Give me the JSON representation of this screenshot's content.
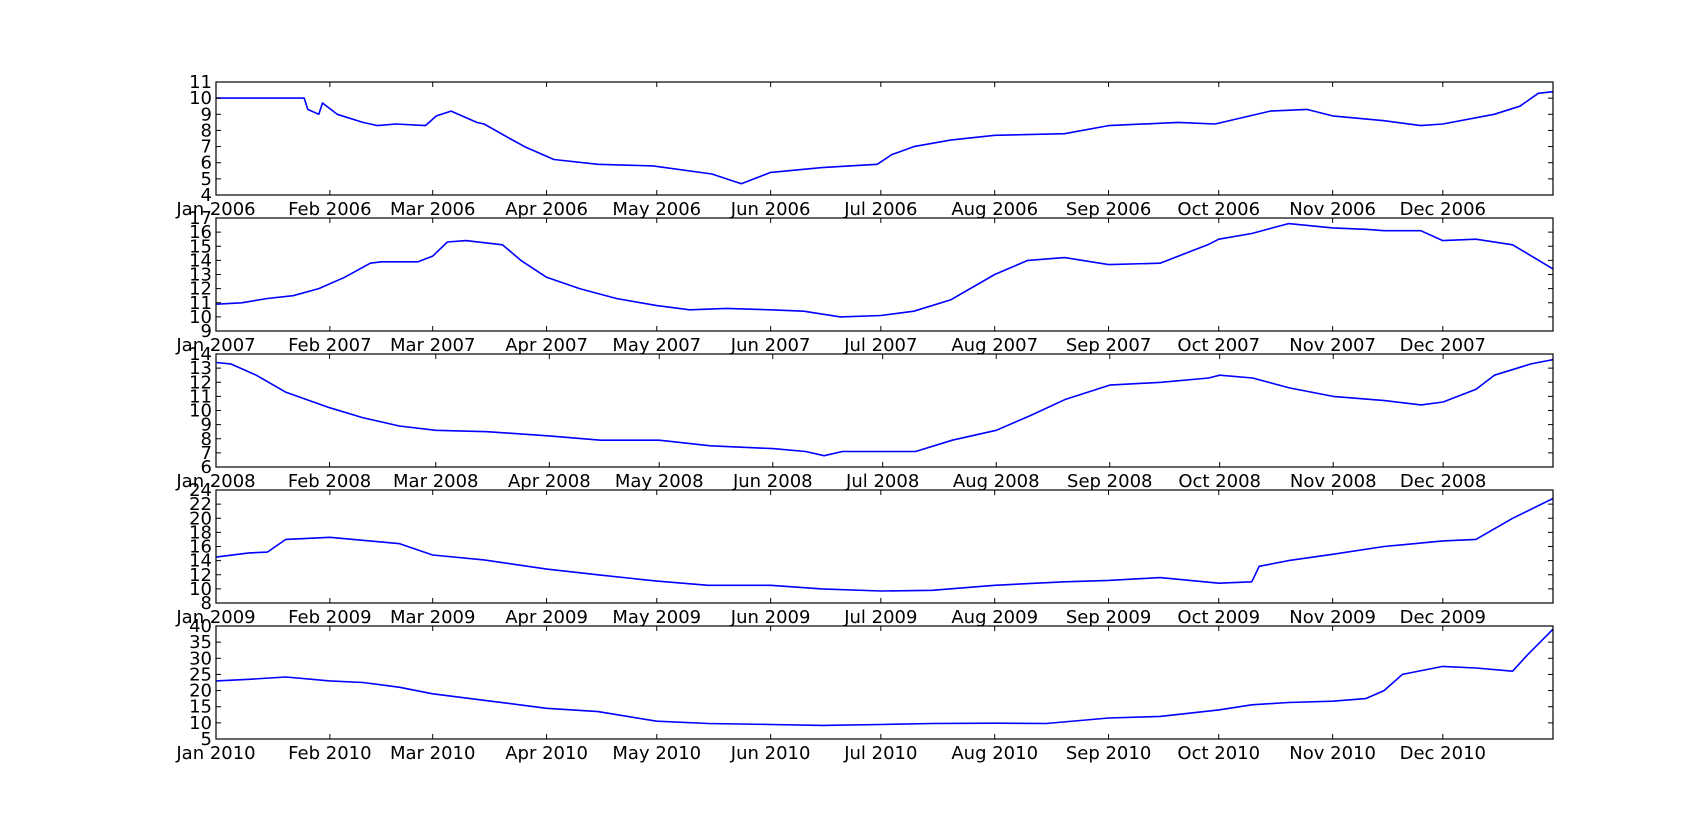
{
  "colors": {
    "line": "#0000ff",
    "frame": "#000000",
    "background": "#ffffff"
  },
  "chart_data": [
    {
      "type": "line",
      "year": "2006",
      "x_range": [
        "2006-01-01",
        "2006-12-31"
      ],
      "x_tick_labels": [
        "Jan 2006",
        "Feb 2006",
        "Mar 2006",
        "Apr 2006",
        "May 2006",
        "Jun 2006",
        "Jul 2006",
        "Aug 2006",
        "Sep 2006",
        "Oct 2006",
        "Nov 2006",
        "Dec 2006"
      ],
      "y_tick_labels": [
        "4",
        "5",
        "6",
        "7",
        "8",
        "9",
        "10",
        "11"
      ],
      "ylim": [
        4,
        11
      ],
      "grid": false,
      "series": [
        {
          "x": [
            "2006-01-01",
            "2006-01-25",
            "2006-01-26",
            "2006-01-29",
            "2006-01-30",
            "2006-02-03",
            "2006-02-10",
            "2006-02-14",
            "2006-02-19",
            "2006-02-27",
            "2006-03-02",
            "2006-03-06",
            "2006-03-13",
            "2006-03-15",
            "2006-03-22",
            "2006-03-26",
            "2006-04-03",
            "2006-04-15",
            "2006-04-30",
            "2006-05-16",
            "2006-05-24",
            "2006-06-01",
            "2006-06-15",
            "2006-06-30",
            "2006-07-04",
            "2006-07-10",
            "2006-07-20",
            "2006-08-01",
            "2006-08-20",
            "2006-09-01",
            "2006-09-20",
            "2006-09-30",
            "2006-10-15",
            "2006-10-25",
            "2006-11-01",
            "2006-11-15",
            "2006-11-25",
            "2006-12-01",
            "2006-12-15",
            "2006-12-22",
            "2006-12-27",
            "2006-12-31"
          ],
          "y": [
            10,
            10,
            9.3,
            9.0,
            9.7,
            9.0,
            8.5,
            8.3,
            8.4,
            8.3,
            8.9,
            9.2,
            8.5,
            8.4,
            7.5,
            7.0,
            6.2,
            5.9,
            5.8,
            5.3,
            4.7,
            5.4,
            5.7,
            5.9,
            6.5,
            7.0,
            7.4,
            7.7,
            7.8,
            8.3,
            8.5,
            8.4,
            9.2,
            9.3,
            8.9,
            8.6,
            8.3,
            8.4,
            9.0,
            9.5,
            10.3,
            10.4
          ]
        }
      ]
    },
    {
      "type": "line",
      "year": "2007",
      "x_range": [
        "2007-01-01",
        "2007-12-31"
      ],
      "x_tick_labels": [
        "Jan 2007",
        "Feb 2007",
        "Mar 2007",
        "Apr 2007",
        "May 2007",
        "Jun 2007",
        "Jul 2007",
        "Aug 2007",
        "Sep 2007",
        "Oct 2007",
        "Nov 2007",
        "Dec 2007"
      ],
      "y_tick_labels": [
        "9",
        "10",
        "11",
        "12",
        "13",
        "14",
        "15",
        "16",
        "17"
      ],
      "ylim": [
        9,
        17
      ],
      "grid": false,
      "series": [
        {
          "x": [
            "2007-01-01",
            "2007-01-08",
            "2007-01-15",
            "2007-01-22",
            "2007-01-29",
            "2007-02-05",
            "2007-02-12",
            "2007-02-15",
            "2007-02-25",
            "2007-03-01",
            "2007-03-05",
            "2007-03-10",
            "2007-03-20",
            "2007-03-25",
            "2007-04-01",
            "2007-04-10",
            "2007-04-20",
            "2007-05-01",
            "2007-05-10",
            "2007-05-20",
            "2007-06-01",
            "2007-06-10",
            "2007-06-20",
            "2007-07-01",
            "2007-07-10",
            "2007-07-20",
            "2007-08-01",
            "2007-08-10",
            "2007-08-20",
            "2007-09-01",
            "2007-09-15",
            "2007-09-28",
            "2007-10-01",
            "2007-10-10",
            "2007-10-20",
            "2007-11-01",
            "2007-11-10",
            "2007-11-15",
            "2007-11-25",
            "2007-12-01",
            "2007-12-10",
            "2007-12-20",
            "2007-12-31"
          ],
          "y": [
            10.9,
            11.0,
            11.3,
            11.5,
            12.0,
            12.8,
            13.8,
            13.9,
            13.9,
            14.3,
            15.3,
            15.4,
            15.1,
            14.0,
            12.8,
            12.0,
            11.3,
            10.8,
            10.5,
            10.6,
            10.5,
            10.4,
            10.0,
            10.1,
            10.4,
            11.2,
            13.0,
            14.0,
            14.2,
            13.7,
            13.8,
            15.1,
            15.5,
            15.9,
            16.6,
            16.3,
            16.2,
            16.1,
            16.1,
            15.4,
            15.5,
            15.1,
            13.4
          ]
        }
      ]
    },
    {
      "type": "line",
      "year": "2008",
      "x_range": [
        "2008-01-01",
        "2008-12-31"
      ],
      "x_tick_labels": [
        "Jan 2008",
        "Feb 2008",
        "Mar 2008",
        "Apr 2008",
        "May 2008",
        "Jun 2008",
        "Jul 2008",
        "Aug 2008",
        "Sep 2008",
        "Oct 2008",
        "Nov 2008",
        "Dec 2008"
      ],
      "y_tick_labels": [
        "6",
        "7",
        "8",
        "9",
        "10",
        "11",
        "12",
        "13",
        "14"
      ],
      "ylim": [
        6,
        14
      ],
      "grid": false,
      "series": [
        {
          "x": [
            "2008-01-01",
            "2008-01-05",
            "2008-01-12",
            "2008-01-20",
            "2008-02-01",
            "2008-02-10",
            "2008-02-20",
            "2008-03-01",
            "2008-03-15",
            "2008-04-01",
            "2008-04-15",
            "2008-05-01",
            "2008-05-15",
            "2008-06-01",
            "2008-06-10",
            "2008-06-15",
            "2008-06-20",
            "2008-07-01",
            "2008-07-10",
            "2008-07-20",
            "2008-08-01",
            "2008-08-10",
            "2008-08-20",
            "2008-09-01",
            "2008-09-15",
            "2008-09-28",
            "2008-10-01",
            "2008-10-10",
            "2008-10-20",
            "2008-11-01",
            "2008-11-15",
            "2008-11-25",
            "2008-12-01",
            "2008-12-10",
            "2008-12-15",
            "2008-12-25",
            "2008-12-31"
          ],
          "y": [
            13.4,
            13.3,
            12.5,
            11.3,
            10.2,
            9.5,
            8.9,
            8.6,
            8.5,
            8.2,
            7.9,
            7.9,
            7.5,
            7.3,
            7.1,
            6.8,
            7.1,
            7.1,
            7.1,
            7.9,
            8.6,
            9.6,
            10.8,
            11.8,
            12.0,
            12.3,
            12.5,
            12.3,
            11.6,
            11.0,
            10.7,
            10.4,
            10.6,
            11.5,
            12.5,
            13.3,
            13.6
          ]
        }
      ]
    },
    {
      "type": "line",
      "year": "2009",
      "x_range": [
        "2009-01-01",
        "2009-12-31"
      ],
      "x_tick_labels": [
        "Jan 2009",
        "Feb 2009",
        "Mar 2009",
        "Apr 2009",
        "May 2009",
        "Jun 2009",
        "Jul 2009",
        "Aug 2009",
        "Sep 2009",
        "Oct 2009",
        "Nov 2009",
        "Dec 2009"
      ],
      "y_tick_labels": [
        "8",
        "10",
        "12",
        "14",
        "16",
        "18",
        "20",
        "22",
        "24"
      ],
      "ylim": [
        8,
        24
      ],
      "grid": false,
      "series": [
        {
          "x": [
            "2009-01-01",
            "2009-01-10",
            "2009-01-15",
            "2009-01-20",
            "2009-02-01",
            "2009-02-20",
            "2009-03-01",
            "2009-03-15",
            "2009-04-01",
            "2009-04-15",
            "2009-05-01",
            "2009-05-15",
            "2009-06-01",
            "2009-06-15",
            "2009-07-01",
            "2009-07-15",
            "2009-08-01",
            "2009-08-20",
            "2009-09-01",
            "2009-09-15",
            "2009-10-01",
            "2009-10-10",
            "2009-10-12",
            "2009-10-20",
            "2009-11-01",
            "2009-11-15",
            "2009-12-01",
            "2009-12-10",
            "2009-12-20",
            "2009-12-31"
          ],
          "y": [
            14.5,
            15.1,
            15.2,
            17.0,
            17.3,
            16.4,
            14.8,
            14.1,
            12.8,
            12.0,
            11.1,
            10.5,
            10.5,
            10.0,
            9.7,
            9.8,
            10.5,
            11.0,
            11.2,
            11.6,
            10.8,
            11.0,
            13.2,
            14.0,
            14.9,
            16.0,
            16.8,
            17.0,
            20.0,
            22.8
          ]
        }
      ]
    },
    {
      "type": "line",
      "year": "2010",
      "x_range": [
        "2010-01-01",
        "2010-12-31"
      ],
      "x_tick_labels": [
        "Jan 2010",
        "Feb 2010",
        "Mar 2010",
        "Apr 2010",
        "May 2010",
        "Jun 2010",
        "Jul 2010",
        "Aug 2010",
        "Sep 2010",
        "Oct 2010",
        "Nov 2010",
        "Dec 2010"
      ],
      "y_tick_labels": [
        "5",
        "10",
        "15",
        "20",
        "25",
        "30",
        "35",
        "40"
      ],
      "ylim": [
        5,
        40
      ],
      "grid": false,
      "series": [
        {
          "x": [
            "2010-01-01",
            "2010-01-10",
            "2010-01-20",
            "2010-02-01",
            "2010-02-10",
            "2010-02-20",
            "2010-03-01",
            "2010-03-15",
            "2010-04-01",
            "2010-04-15",
            "2010-05-01",
            "2010-05-15",
            "2010-06-01",
            "2010-06-15",
            "2010-07-01",
            "2010-07-15",
            "2010-08-01",
            "2010-08-15",
            "2010-09-01",
            "2010-09-15",
            "2010-10-01",
            "2010-10-10",
            "2010-10-20",
            "2010-11-01",
            "2010-11-10",
            "2010-11-15",
            "2010-11-20",
            "2010-12-01",
            "2010-12-10",
            "2010-12-20",
            "2010-12-24",
            "2010-12-31"
          ],
          "y": [
            23,
            23.5,
            24.2,
            23.0,
            22.5,
            21.0,
            19.0,
            17.0,
            14.5,
            13.5,
            10.5,
            9.8,
            9.5,
            9.2,
            9.5,
            9.8,
            9.9,
            9.8,
            11.5,
            12.0,
            14.0,
            15.6,
            16.3,
            16.7,
            17.5,
            20.0,
            25.0,
            27.5,
            27.0,
            26.0,
            31.0,
            39.0
          ]
        }
      ]
    }
  ]
}
